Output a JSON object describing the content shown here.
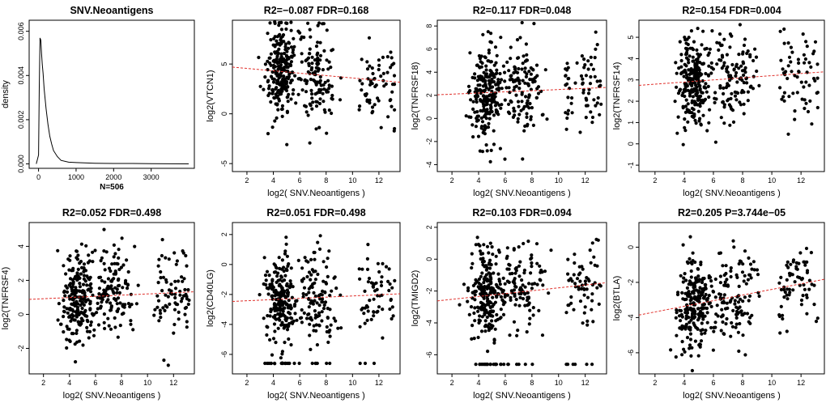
{
  "chart_data": [
    {
      "type": "line",
      "title": "SNV.Neoantigens",
      "xlabel": "N=506",
      "ylabel": "density",
      "xlim": [
        -250,
        4150
      ],
      "ylim": [
        -0.0002,
        0.0065
      ],
      "xticks": [
        0,
        1000,
        2000,
        3000
      ],
      "xtick_labels": [
        "0",
        "1000",
        "2000",
        "3000"
      ],
      "yticks": [
        0.0,
        0.002,
        0.004,
        0.006
      ],
      "ytick_labels": [
        "0.000",
        "0.002",
        "0.004",
        "0.006"
      ],
      "series": [
        {
          "name": "density",
          "x": [
            -60,
            0,
            20,
            40,
            60,
            80,
            100,
            120,
            150,
            200,
            250,
            300,
            350,
            400,
            500,
            600,
            800,
            1000,
            1500,
            2000,
            2500,
            3000,
            4000
          ],
          "y": [
            0.0,
            0.0004,
            0.0035,
            0.0057,
            0.0056,
            0.005,
            0.0045,
            0.0041,
            0.0034,
            0.0025,
            0.0018,
            0.00125,
            0.0009,
            0.0006,
            0.00033,
            0.00016,
            8e-05,
            6e-05,
            3e-05,
            2e-05,
            2e-05,
            1e-05,
            0.0
          ]
        }
      ]
    },
    {
      "type": "scatter",
      "title": "R2=−0.087 FDR=0.168",
      "xlabel": "log2( SNV.Neoantigens )",
      "ylabel": "log2(VTCN1)",
      "xlim": [
        0.9,
        13.6
      ],
      "ylim": [
        -5.8,
        9.4
      ],
      "xticks": [
        2,
        4,
        6,
        8,
        10,
        12
      ],
      "xtick_labels": [
        "2",
        "4",
        "6",
        "8",
        "10",
        "12"
      ],
      "yticks": [
        -5,
        0,
        5
      ],
      "ytick_labels": [
        "-5",
        "0",
        "5"
      ],
      "trend": [
        4.8,
        -0.12
      ],
      "seed": 11,
      "n_points": 420,
      "spread": 2.3
    },
    {
      "type": "scatter",
      "title": "R2=0.117 FDR=0.048",
      "xlabel": "log2( SNV.Neoantigens )",
      "ylabel": "log2(TNFRSF18)",
      "xlim": [
        0.9,
        13.6
      ],
      "ylim": [
        -4.6,
        8.5
      ],
      "xticks": [
        2,
        4,
        6,
        8,
        10,
        12
      ],
      "xtick_labels": [
        "2",
        "4",
        "6",
        "8",
        "10",
        "12"
      ],
      "yticks": [
        -4,
        -2,
        0,
        2,
        4,
        6,
        8
      ],
      "ytick_labels": [
        "-4",
        "-2",
        "0",
        "2",
        "4",
        "6",
        "8"
      ],
      "trend": [
        2.0,
        0.05
      ],
      "seed": 23,
      "n_points": 420,
      "spread": 2.0
    },
    {
      "type": "scatter",
      "title": "R2=0.154 FDR=0.004",
      "xlabel": "log2( SNV.Neoantigens )",
      "ylabel": "log2(TNFRSF14)",
      "xlim": [
        0.9,
        13.6
      ],
      "ylim": [
        -1.3,
        5.8
      ],
      "xticks": [
        2,
        4,
        6,
        8,
        10,
        12
      ],
      "xtick_labels": [
        "2",
        "4",
        "6",
        "8",
        "10",
        "12"
      ],
      "yticks": [
        -1,
        0,
        1,
        2,
        3,
        4,
        5
      ],
      "ytick_labels": [
        "-1",
        "0",
        "1",
        "2",
        "3",
        "4",
        "5"
      ],
      "trend": [
        2.7,
        0.05
      ],
      "seed": 37,
      "n_points": 420,
      "spread": 1.0
    },
    {
      "type": "scatter",
      "title": "R2=0.052 FDR=0.498",
      "xlabel": "log2( SNV.Neoantigens )",
      "ylabel": "log2(TNFRSF4)",
      "xlim": [
        0.9,
        13.6
      ],
      "ylim": [
        -3.5,
        5.4
      ],
      "xticks": [
        2,
        4,
        6,
        8,
        10,
        12
      ],
      "xtick_labels": [
        "2",
        "4",
        "6",
        "8",
        "10",
        "12"
      ],
      "yticks": [
        -2,
        0,
        2,
        4
      ],
      "ytick_labels": [
        "-2",
        "0",
        "2",
        "4"
      ],
      "trend": [
        0.85,
        0.035
      ],
      "seed": 41,
      "n_points": 420,
      "spread": 1.3
    },
    {
      "type": "scatter",
      "title": "R2=0.051 FDR=0.498",
      "xlabel": "log2( SNV.Neoantigens )",
      "ylabel": "log2(CD40LG)",
      "xlim": [
        0.9,
        13.6
      ],
      "ylim": [
        -7.3,
        2.8
      ],
      "xticks": [
        2,
        4,
        6,
        8,
        10,
        12
      ],
      "xtick_labels": [
        "2",
        "4",
        "6",
        "8",
        "10",
        "12"
      ],
      "yticks": [
        -6,
        -4,
        -2,
        0,
        2
      ],
      "ytick_labels": [
        "-6",
        "-4",
        "-2",
        "0",
        "2"
      ],
      "trend": [
        -2.5,
        0.04
      ],
      "seed": 53,
      "n_points": 420,
      "spread": 1.5,
      "floor": -6.6
    },
    {
      "type": "scatter",
      "title": "R2=0.103 FDR=0.094",
      "xlabel": "log2( SNV.Neoantigens )",
      "ylabel": "log2(TMIGD2)",
      "xlim": [
        0.9,
        13.6
      ],
      "ylim": [
        -7.2,
        2.3
      ],
      "xticks": [
        2,
        4,
        6,
        8,
        10,
        12
      ],
      "xtick_labels": [
        "2",
        "4",
        "6",
        "8",
        "10",
        "12"
      ],
      "yticks": [
        -6,
        -4,
        -2,
        0,
        2
      ],
      "ytick_labels": [
        "-6",
        "-4",
        "-2",
        "0",
        "2"
      ],
      "trend": [
        -2.7,
        0.09
      ],
      "seed": 67,
      "n_points": 420,
      "spread": 1.4,
      "floor": -6.6
    },
    {
      "type": "scatter",
      "title": "R2=0.205 P=3.744e−05",
      "xlabel": "log2( SNV.Neoantigens )",
      "ylabel": "log2(BTLA)",
      "xlim": [
        0.9,
        13.6
      ],
      "ylim": [
        -7.2,
        1.4
      ],
      "xticks": [
        2,
        4,
        6,
        8,
        10,
        12
      ],
      "xtick_labels": [
        "2",
        "4",
        "6",
        "8",
        "10",
        "12"
      ],
      "yticks": [
        -6,
        -4,
        -2,
        0
      ],
      "ytick_labels": [
        "-6",
        "-4",
        "-2",
        "0"
      ],
      "trend": [
        -4.0,
        0.16
      ],
      "seed": 79,
      "n_points": 420,
      "spread": 1.3
    }
  ]
}
